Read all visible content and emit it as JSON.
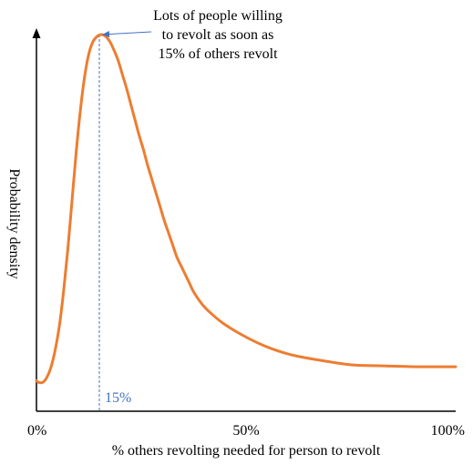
{
  "chart_data": {
    "type": "line",
    "title": "",
    "xlabel": "% others revolting needed for person to revolt",
    "ylabel": "Probability density",
    "xlim": [
      0,
      100
    ],
    "x_tick_labels": [
      "0%",
      "50%",
      "100%"
    ],
    "x_tick_values": [
      0,
      50,
      100
    ],
    "y_ticks_shown": false,
    "grid": false,
    "legend": "none",
    "series": [
      {
        "color": "#ED7D31",
        "points": [
          [
            0,
            0.04
          ],
          [
            0.5,
            0.03
          ],
          [
            1.5,
            0.03
          ],
          [
            2.5,
            0.06
          ],
          [
            3.5,
            0.12
          ],
          [
            4.5,
            0.22
          ],
          [
            5.5,
            0.36
          ],
          [
            6.5,
            0.56
          ],
          [
            7.5,
            0.8
          ],
          [
            8.5,
            1.08
          ],
          [
            9.5,
            1.36
          ],
          [
            10.5,
            1.6
          ],
          [
            11.5,
            1.79
          ],
          [
            12.5,
            1.92
          ],
          [
            13.5,
            1.99
          ],
          [
            14.5,
            2.02
          ],
          [
            15.5,
            2.03
          ],
          [
            16.5,
            2.02
          ],
          [
            17.5,
            1.99
          ],
          [
            18.5,
            1.94
          ],
          [
            19.5,
            1.88
          ],
          [
            20.5,
            1.8
          ],
          [
            21.5,
            1.72
          ],
          [
            22.5,
            1.63
          ],
          [
            23.5,
            1.54
          ],
          [
            24.5,
            1.45
          ],
          [
            25.5,
            1.37
          ],
          [
            26.5,
            1.28
          ],
          [
            27.5,
            1.2
          ],
          [
            28.5,
            1.12
          ],
          [
            29.5,
            1.04
          ],
          [
            30.5,
            0.96
          ],
          [
            31.5,
            0.89
          ],
          [
            32.5,
            0.82
          ],
          [
            33.5,
            0.75
          ],
          [
            34.5,
            0.7
          ],
          [
            35.5,
            0.65
          ],
          [
            36.5,
            0.6
          ],
          [
            37.5,
            0.55
          ],
          [
            39.5,
            0.48
          ],
          [
            41.5,
            0.43
          ],
          [
            44.5,
            0.37
          ],
          [
            48.5,
            0.31
          ],
          [
            52.5,
            0.26
          ],
          [
            56.5,
            0.22
          ],
          [
            60.5,
            0.19
          ],
          [
            64.5,
            0.17
          ],
          [
            69.5,
            0.15
          ],
          [
            75.5,
            0.13
          ],
          [
            82.5,
            0.125
          ],
          [
            90.5,
            0.12
          ],
          [
            100,
            0.12
          ]
        ]
      }
    ],
    "marker": {
      "x": 15,
      "label": "15%",
      "color": "#4472C4"
    },
    "annotation": {
      "lines": [
        "Lots of people willing",
        "to revolt as soon as",
        "15% of others revolt"
      ],
      "arrow_color": "#4472C4",
      "points_to_x": 15
    }
  }
}
